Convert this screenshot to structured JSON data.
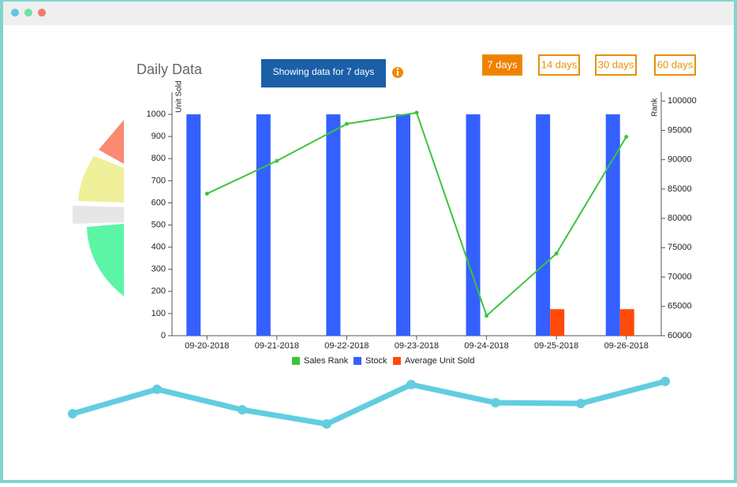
{
  "badge": "Showing data for 7 days",
  "buttons": [
    {
      "label": "7 days",
      "active": true
    },
    {
      "label": "14 days",
      "active": false
    },
    {
      "label": "30 days",
      "active": false
    },
    {
      "label": "60 days",
      "active": false
    }
  ],
  "chart_data": {
    "type": "bar",
    "title": "Daily Data",
    "y_label": "Unit Sold",
    "y2_label": "Rank",
    "categories": [
      "09-20-2018",
      "09-21-2018",
      "09-22-2018",
      "09-23-2018",
      "09-24-2018",
      "09-25-2018",
      "09-26-2018"
    ],
    "series": [
      {
        "name": "Sales Rank",
        "color": "#3cc43c",
        "type": "line",
        "axis": "y2",
        "values": [
          84200,
          89800,
          96100,
          98000,
          63400,
          74000,
          93900
        ]
      },
      {
        "name": "Stock",
        "color": "#3360ff",
        "type": "bar",
        "values": [
          1000,
          1000,
          1000,
          1000,
          1000,
          1000,
          1000
        ]
      },
      {
        "name": "Average Unit Sold",
        "color": "#ff4a0a",
        "type": "bar",
        "values": [
          0,
          0,
          0,
          0,
          0,
          120,
          120
        ]
      }
    ],
    "ylim": [
      0,
      1100
    ],
    "yticks": [
      0,
      100,
      200,
      300,
      400,
      500,
      600,
      700,
      800,
      900,
      1000
    ],
    "y2lim": [
      60000,
      101500
    ],
    "y2ticks": [
      60000,
      65000,
      70000,
      75000,
      80000,
      85000,
      90000,
      95000,
      100000
    ]
  }
}
